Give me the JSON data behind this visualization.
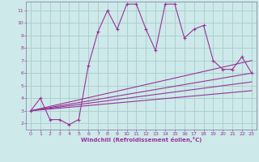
{
  "xlabel": "Windchill (Refroidissement éolien,°C)",
  "background_color": "#cde9e9",
  "line_color": "#993399",
  "grid_color": "#aacccc",
  "spine_color": "#8888aa",
  "xlim": [
    -0.5,
    23.5
  ],
  "ylim": [
    1.5,
    11.7
  ],
  "yticks": [
    2,
    3,
    4,
    5,
    6,
    7,
    8,
    9,
    10,
    11
  ],
  "xticks": [
    0,
    1,
    2,
    3,
    4,
    5,
    6,
    7,
    8,
    9,
    10,
    11,
    12,
    13,
    14,
    15,
    16,
    17,
    18,
    19,
    20,
    21,
    22,
    23
  ],
  "main_series_x": [
    0,
    1,
    2,
    3,
    4,
    5,
    6,
    7,
    8,
    9,
    10,
    11,
    12,
    13,
    14,
    15,
    16,
    17,
    18,
    19,
    20,
    21,
    22,
    23
  ],
  "main_series_y": [
    3.0,
    4.0,
    2.3,
    2.3,
    1.9,
    2.3,
    6.6,
    9.3,
    11.0,
    9.5,
    11.5,
    11.5,
    9.5,
    7.8,
    11.5,
    11.5,
    8.8,
    9.5,
    9.8,
    7.0,
    6.3,
    6.3,
    7.3,
    6.0
  ],
  "line1_x": [
    0,
    23
  ],
  "line1_y": [
    3.0,
    7.0
  ],
  "line2_x": [
    0,
    23
  ],
  "line2_y": [
    3.0,
    6.0
  ],
  "line3_x": [
    0,
    23
  ],
  "line3_y": [
    3.0,
    5.3
  ],
  "line4_x": [
    0,
    23
  ],
  "line4_y": [
    3.0,
    4.6
  ]
}
